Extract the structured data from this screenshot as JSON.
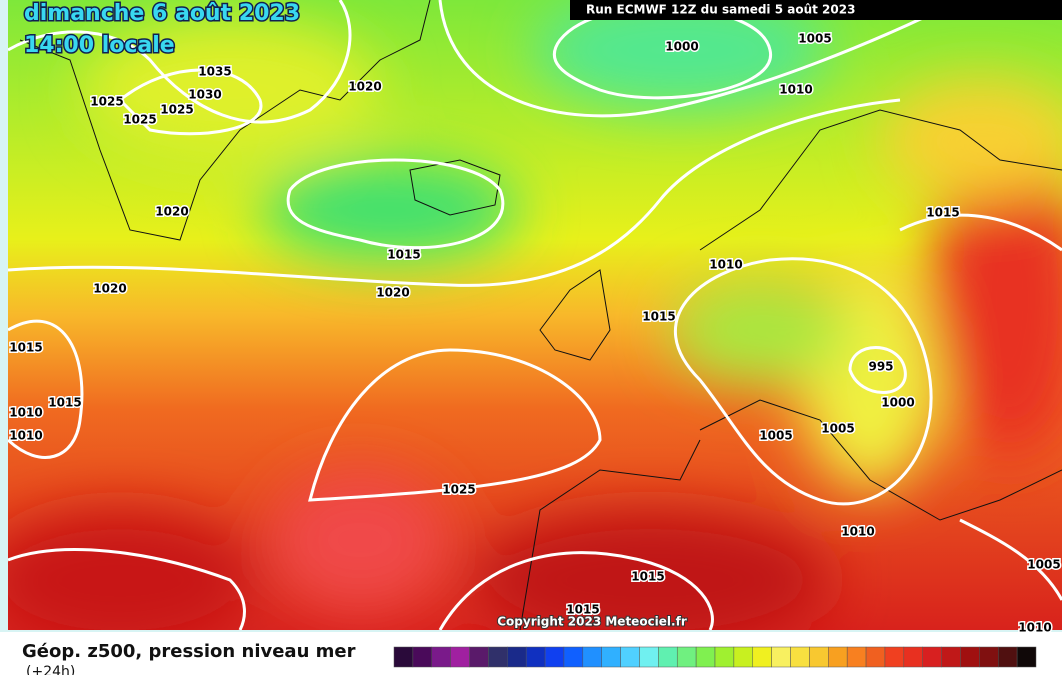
{
  "header": {
    "date": "dimanche 6 août 2023",
    "time": "14:00 locale",
    "run": "Run ECMWF 12Z du samedi 5 août 2023"
  },
  "isobar_labels": [
    "1035",
    "1030",
    "1025",
    "1025",
    "1025",
    "1020",
    "1000",
    "1005",
    "1010",
    "1020",
    "1015",
    "1020",
    "1020",
    "1010",
    "1015",
    "1015",
    "1015",
    "1015",
    "1010",
    "1010",
    "995",
    "1000",
    "1005",
    "1005",
    "1025",
    "1010",
    "1005",
    "1015",
    "1015",
    "1010"
  ],
  "copyright": "Copyright 2023 Meteociel.fr",
  "legend": {
    "title": "Géop. z500, pression niveau mer",
    "subtitle": "(+24h)"
  }
}
